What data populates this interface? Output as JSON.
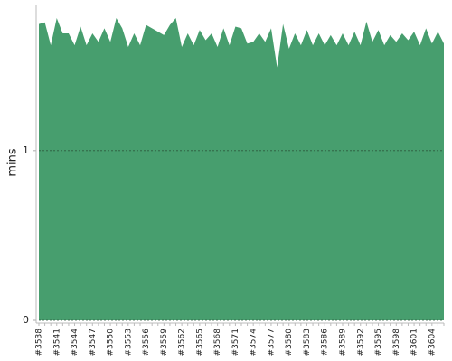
{
  "chart_data": {
    "type": "area",
    "y_label": "mins",
    "color": "#479e6e",
    "categories": [
      "#3538",
      null,
      null,
      "#3541",
      null,
      null,
      "#3544",
      null,
      null,
      "#3547",
      null,
      null,
      "#3550",
      null,
      null,
      "#3553",
      null,
      null,
      "#3556",
      null,
      null,
      "#3559",
      null,
      null,
      "#3562",
      null,
      null,
      "#3565",
      null,
      null,
      "#3568",
      null,
      null,
      "#3571",
      null,
      null,
      "#3574",
      null,
      null,
      "#3577",
      null,
      null,
      "#3580",
      null,
      null,
      "#3583",
      null,
      null,
      "#3586",
      null,
      null,
      "#3589",
      null,
      null,
      "#3592",
      null,
      null,
      "#3595",
      null,
      null,
      "#3598",
      null,
      null,
      "#3601",
      null,
      null,
      "#3604",
      null,
      null
    ],
    "values": [
      1.745,
      1.755,
      1.62,
      1.78,
      1.69,
      1.69,
      1.62,
      1.73,
      1.62,
      1.69,
      1.64,
      1.72,
      1.64,
      1.78,
      1.72,
      1.61,
      1.69,
      1.62,
      1.74,
      1.72,
      1.7,
      1.68,
      1.74,
      1.78,
      1.61,
      1.69,
      1.62,
      1.71,
      1.65,
      1.69,
      1.61,
      1.72,
      1.62,
      1.73,
      1.72,
      1.63,
      1.64,
      1.69,
      1.64,
      1.72,
      1.49,
      1.745,
      1.6,
      1.69,
      1.62,
      1.71,
      1.62,
      1.69,
      1.62,
      1.68,
      1.62,
      1.69,
      1.62,
      1.7,
      1.62,
      1.76,
      1.64,
      1.71,
      1.62,
      1.68,
      1.64,
      1.69,
      1.65,
      1.7,
      1.62,
      1.72,
      1.63,
      1.7,
      1.63
    ],
    "ylim": [
      0,
      1.86
    ],
    "yticks": [
      0,
      1
    ],
    "grid": true
  }
}
